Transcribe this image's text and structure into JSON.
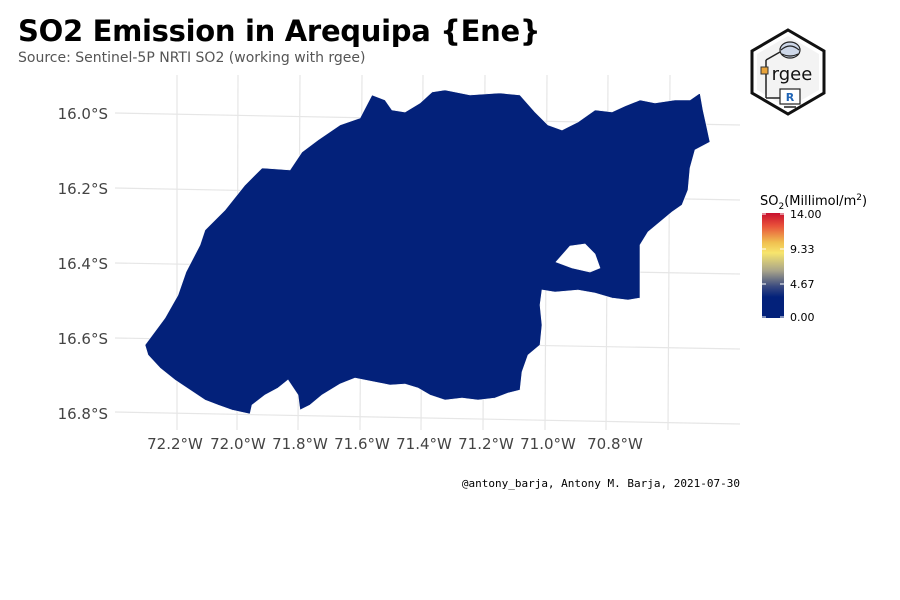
{
  "title": "SO2 Emission in Arequipa {Ene}",
  "subtitle": "Source: Sentinel-5P NRTI SO2 (working with rgee)",
  "caption": "@antony_barja, Antony M. Barja, 2021-07-30",
  "logo": {
    "text": "rgee",
    "badge": "R"
  },
  "map": {
    "region": "Arequipa",
    "y_ticks": [
      "16.0°S",
      "16.2°S",
      "16.4°S",
      "16.6°S",
      "16.8°S"
    ],
    "x_ticks": [
      "72.2°W",
      "72.0°W",
      "71.8°W",
      "71.6°W",
      "71.4°W",
      "71.2°W",
      "71.0°W",
      "70.8°W"
    ],
    "fill_color": "#03217a",
    "border_color": "#ffffff",
    "grid": true
  },
  "legend": {
    "title_prefix": "SO",
    "title_sub": "2",
    "title_suffix": "(Millimol/m",
    "title_sup": "2",
    "title_end": ")",
    "labels": [
      "14.00",
      "9.33",
      "4.67",
      "0.00"
    ],
    "colors": [
      "#c8102e",
      "#e8503a",
      "#f0d060",
      "#f7e56d",
      "#a8a48a",
      "#5a6a8a",
      "#03217a"
    ]
  }
}
